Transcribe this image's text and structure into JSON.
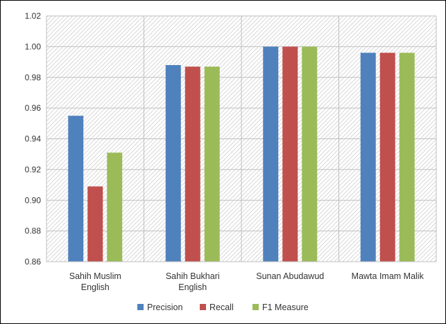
{
  "chart_data": {
    "type": "bar",
    "title": "",
    "xlabel": "",
    "ylabel": "",
    "categories": [
      [
        "Sahih Muslim",
        "English"
      ],
      [
        "Sahih Bukhari",
        "English"
      ],
      [
        "Sunan Abudawud"
      ],
      [
        "Mawta Imam Malik"
      ]
    ],
    "series": [
      {
        "name": "Precision",
        "color": "#4f81bd",
        "values": [
          0.955,
          0.988,
          1.0,
          0.996
        ]
      },
      {
        "name": "Recall",
        "color": "#c0504d",
        "values": [
          0.909,
          0.987,
          1.0,
          0.996
        ]
      },
      {
        "name": "F1 Measure",
        "color": "#9bbb59",
        "values": [
          0.931,
          0.987,
          1.0,
          0.996
        ]
      }
    ],
    "ylim": [
      0.86,
      1.02
    ],
    "yticks": [
      "0.86",
      "0.88",
      "0.90",
      "0.92",
      "0.94",
      "0.96",
      "0.98",
      "1.00",
      "1.02"
    ],
    "grid": true,
    "plot_background": "hatched",
    "legend_position": "bottom"
  }
}
